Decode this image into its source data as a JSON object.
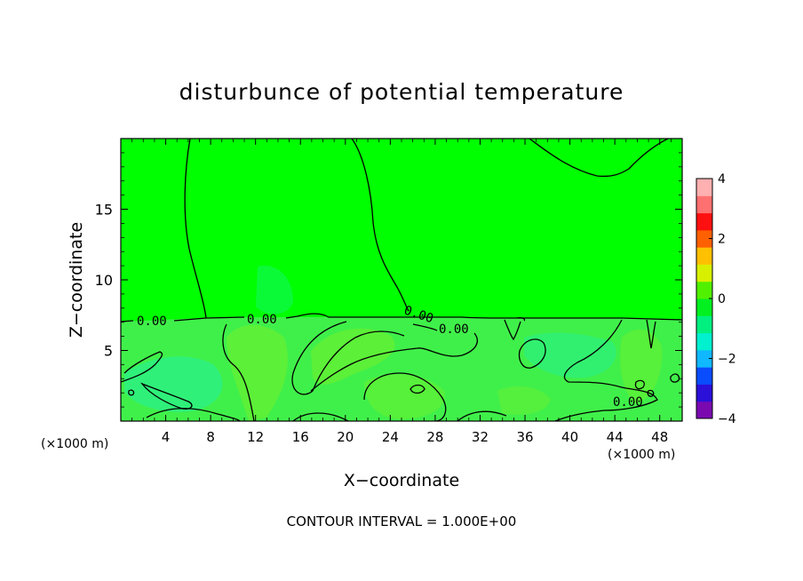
{
  "chart_data": {
    "type": "heatmap",
    "title": "disturbunce of potential temperature",
    "xlabel": "X−coordinate",
    "ylabel": "Z−coordinate",
    "x_unit_left": "(×1000 m)",
    "x_unit_right": "(×1000 m)",
    "xlim": [
      0,
      50
    ],
    "ylim": [
      0,
      20
    ],
    "x_ticks": [
      4,
      8,
      12,
      16,
      20,
      24,
      28,
      32,
      36,
      40,
      44,
      48
    ],
    "y_ticks": [
      5,
      10,
      15
    ],
    "colorbar": {
      "range": [
        -4,
        4
      ],
      "ticks": [
        4,
        2,
        0,
        -2,
        -4
      ],
      "colors": [
        "#7a0ab0",
        "#2a10d8",
        "#0a4cff",
        "#10b8ff",
        "#00f0d0",
        "#00f080",
        "#00f020",
        "#50f000",
        "#d8f000",
        "#ffc000",
        "#ff6000",
        "#ff1010",
        "#ff7070",
        "#ffb0b0"
      ]
    },
    "contour_labels": [
      "0.00",
      "0.00",
      "0.00",
      "0.00",
      "0.00"
    ],
    "contour_interval_text": "CONTOUR INTERVAL = 1.000E+00",
    "background_color": "#00ff00",
    "lower_layer_color": "#40f04a",
    "warm_patch_color": "#68f030",
    "cool_patch_color": "#20f0a0"
  }
}
